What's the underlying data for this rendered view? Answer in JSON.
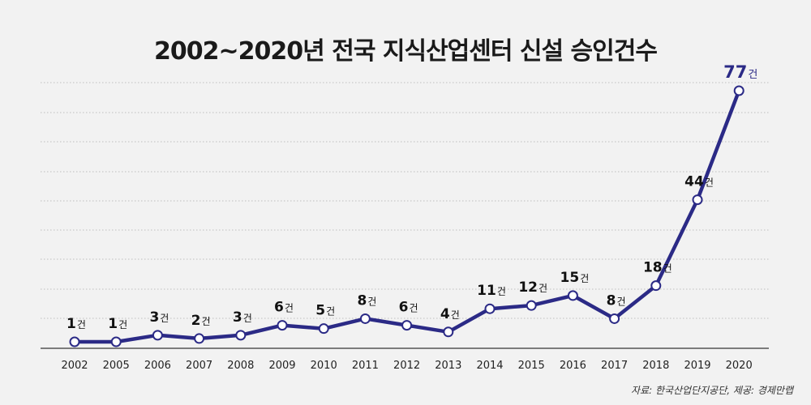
{
  "chart_data": {
    "type": "line",
    "title": "2002~2020년 전국 지식산업센터 신설 승인건수",
    "x": [
      "2002",
      "2005",
      "2006",
      "2007",
      "2008",
      "2009",
      "2010",
      "2011",
      "2012",
      "2013",
      "2014",
      "2015",
      "2016",
      "2017",
      "2018",
      "2019",
      "2020"
    ],
    "series": [
      {
        "values": [
          1,
          1,
          3,
          2,
          3,
          6,
          5,
          8,
          6,
          4,
          11,
          12,
          15,
          8,
          18,
          44,
          77
        ],
        "color": "#2b2a86"
      }
    ],
    "data_labels": [
      "1건",
      "1건",
      "3건",
      "2건",
      "3건",
      "6건",
      "5건",
      "8건",
      "6건",
      "4건",
      "11건",
      "12건",
      "15건",
      "8건",
      "18건",
      "44건",
      "77건"
    ],
    "data_label_unit": "건",
    "xlabel": "",
    "ylabel": "",
    "grid": true,
    "grid_style": "dotted horizontal",
    "legend": "none"
  },
  "source": "자료: 한국산업단지공단, 제공: 경제만랩"
}
